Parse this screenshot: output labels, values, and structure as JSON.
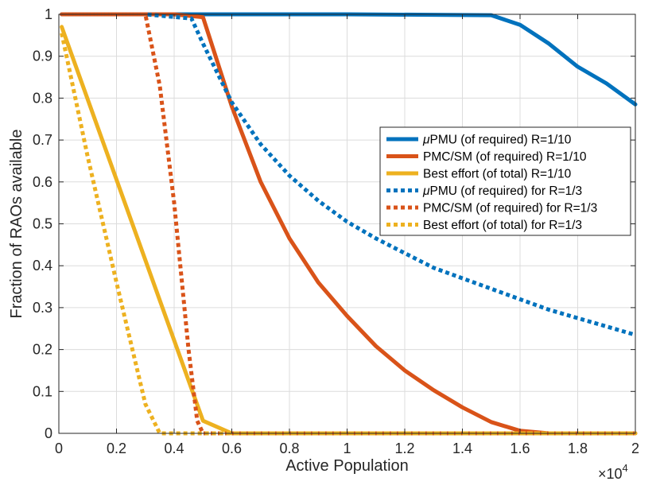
{
  "chart_data": {
    "type": "line",
    "title": "",
    "xlabel": "Active Population",
    "ylabel": "Fraction of RAOs available",
    "x_exponent_label": "×10",
    "x_exponent": "4",
    "xlim": [
      0,
      2
    ],
    "ylim": [
      0,
      1
    ],
    "grid": true,
    "legend_position": "right-middle",
    "x_ticks": [
      "0",
      "0.2",
      "0.4",
      "0.6",
      "0.8",
      "1",
      "1.2",
      "1.4",
      "1.6",
      "1.8",
      "2"
    ],
    "y_ticks": [
      "0",
      "0.1",
      "0.2",
      "0.3",
      "0.4",
      "0.5",
      "0.6",
      "0.7",
      "0.8",
      "0.9",
      "1"
    ],
    "x_tick_values": [
      0,
      0.2,
      0.4,
      0.6,
      0.8,
      1,
      1.2,
      1.4,
      1.6,
      1.8,
      2
    ],
    "y_tick_values": [
      0,
      0.1,
      0.2,
      0.3,
      0.4,
      0.5,
      0.6,
      0.7,
      0.8,
      0.9,
      1
    ],
    "series": [
      {
        "name": "μPMU (of required) R=1/10",
        "legend_prefix": "μ",
        "legend_rest": "PMU (of required) R=1/10",
        "color": "#0072BD",
        "style": "solid",
        "x": [
          0.01,
          0.5,
          1.0,
          1.5,
          1.6,
          1.7,
          1.8,
          1.9,
          2.0
        ],
        "y": [
          1.0,
          1.0,
          1.0,
          0.998,
          0.975,
          0.93,
          0.875,
          0.835,
          0.785
        ]
      },
      {
        "name": "PMC/SM (of required) R=1/10",
        "legend_prefix": "",
        "legend_rest": "PMC/SM (of required) R=1/10",
        "color": "#D95319",
        "style": "solid",
        "x": [
          0.01,
          0.4,
          0.5,
          0.6,
          0.7,
          0.8,
          0.9,
          1.0,
          1.1,
          1.2,
          1.3,
          1.4,
          1.5,
          1.6,
          1.7,
          1.8,
          2.0
        ],
        "y": [
          1.0,
          1.0,
          0.993,
          0.78,
          0.6,
          0.465,
          0.36,
          0.28,
          0.208,
          0.15,
          0.103,
          0.062,
          0.027,
          0.006,
          0.0,
          0.0,
          0.0
        ]
      },
      {
        "name": "Best effort (of total) R=1/10",
        "legend_prefix": "",
        "legend_rest": "Best effort (of total) R=1/10",
        "color": "#EDB120",
        "style": "solid",
        "x": [
          0.01,
          0.5,
          0.6,
          0.7,
          1.0,
          1.5,
          2.0
        ],
        "y": [
          0.97,
          0.03,
          0.0,
          0.0,
          0.0,
          0.0,
          0.0
        ]
      },
      {
        "name": "μPMU (of required) for R=1/3",
        "legend_prefix": "μ",
        "legend_rest": "PMU (of required) for R=1/3",
        "color": "#0072BD",
        "style": "dotted",
        "x": [
          0.01,
          0.3,
          0.46,
          0.5,
          0.6,
          0.7,
          0.8,
          0.9,
          1.0,
          1.1,
          1.2,
          1.3,
          1.4,
          1.5,
          1.6,
          1.7,
          1.8,
          1.9,
          2.0
        ],
        "y": [
          1.0,
          1.0,
          0.99,
          0.93,
          0.79,
          0.69,
          0.615,
          0.555,
          0.505,
          0.465,
          0.43,
          0.395,
          0.37,
          0.345,
          0.32,
          0.295,
          0.275,
          0.255,
          0.235
        ]
      },
      {
        "name": "PMC/SM (of required) for R=1/3",
        "legend_prefix": "",
        "legend_rest": "PMC/SM (of required) for R=1/3",
        "color": "#D95319",
        "style": "dotted",
        "x": [
          0.01,
          0.3,
          0.35,
          0.4,
          0.45,
          0.48,
          0.5,
          0.6,
          1.0,
          1.5,
          2.0
        ],
        "y": [
          1.0,
          1.0,
          0.83,
          0.55,
          0.2,
          0.03,
          0.0,
          0.0,
          0.0,
          0.0,
          0.0
        ]
      },
      {
        "name": "Best effort (of total) for R=1/3",
        "legend_prefix": "",
        "legend_rest": "Best effort (of total) for R=1/3",
        "color": "#EDB120",
        "style": "dotted",
        "x": [
          0.01,
          0.1,
          0.2,
          0.3,
          0.35,
          0.4,
          0.6,
          1.0,
          1.5,
          2.0
        ],
        "y": [
          0.955,
          0.66,
          0.36,
          0.07,
          0.0,
          0.0,
          0.0,
          0.0,
          0.0,
          0.0
        ]
      }
    ]
  }
}
